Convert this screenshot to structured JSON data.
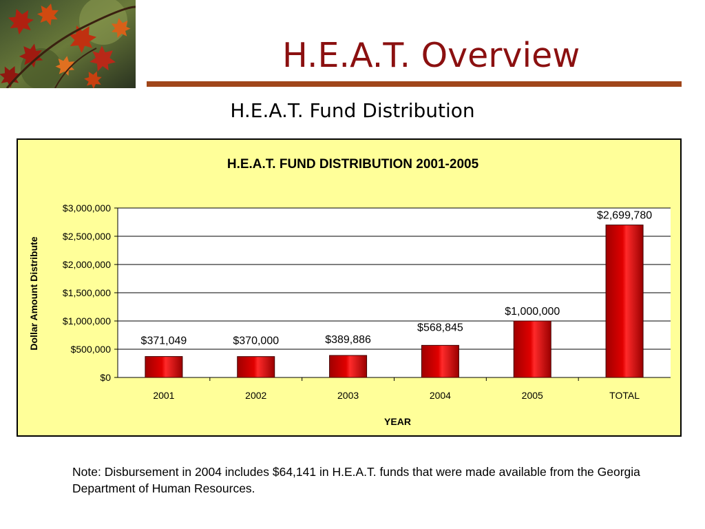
{
  "slide": {
    "title": "H.E.A.T. Overview",
    "subtitle": "H.E.A.T. Fund Distribution",
    "note": "Note:  Disbursement in 2004 includes $64,141 in H.E.A.T. funds that were made available from the Georgia Department of Human Resources.",
    "colors": {
      "title": "#8b1010",
      "rule": "#a0461a",
      "chart_background": "#ffff99",
      "bar": "#e00000"
    },
    "photo": "autumn-maple-leaves-photo"
  },
  "chart_data": {
    "type": "bar",
    "title": "H.E.A.T. FUND DISTRIBUTION 2001-2005",
    "xlabel": "YEAR",
    "ylabel": "Dollar Amount Distribute",
    "categories": [
      "2001",
      "2002",
      "2003",
      "2004",
      "2005",
      "TOTAL"
    ],
    "values": [
      371049,
      370000,
      389886,
      568845,
      1000000,
      2699780
    ],
    "value_labels": [
      "$371,049",
      "$370,000",
      "$389,886",
      "$568,845",
      "$1,000,000",
      "$2,699,780"
    ],
    "ylim": [
      0,
      3000000
    ],
    "yticks": [
      0,
      500000,
      1000000,
      1500000,
      2000000,
      2500000,
      3000000
    ],
    "ytick_labels": [
      "$0",
      "$500,000",
      "$1,000,000",
      "$1,500,000",
      "$2,000,000",
      "$2,500,000",
      "$3,000,000"
    ],
    "grid": true,
    "legend": "none"
  }
}
